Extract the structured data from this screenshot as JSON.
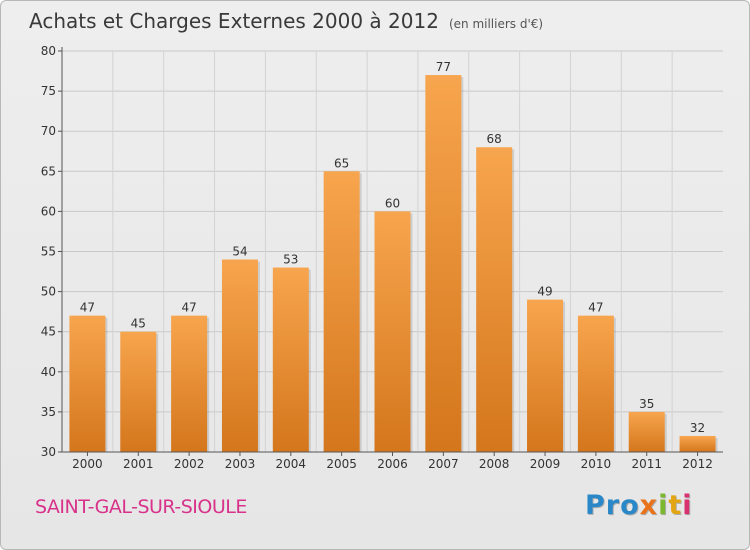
{
  "header": {
    "title": "Achats et Charges Externes 2000 à 2012",
    "subtitle": "(en milliers d'€)"
  },
  "footer": {
    "city": "SAINT-GAL-SUR-SIOULE",
    "logo": [
      "Pro",
      "x",
      "i",
      "t",
      "i"
    ]
  },
  "colors": {
    "bar_light": "#f7a54e",
    "bar_dark": "#d4761c",
    "city": "#d8328a"
  },
  "chart_data": {
    "type": "bar",
    "categories": [
      "2000",
      "2001",
      "2002",
      "2003",
      "2004",
      "2005",
      "2006",
      "2007",
      "2008",
      "2009",
      "2010",
      "2011",
      "2012"
    ],
    "values": [
      47,
      45,
      47,
      54,
      53,
      65,
      60,
      77,
      68,
      49,
      47,
      35,
      32
    ],
    "ylim": [
      30,
      80
    ],
    "yticks": [
      30,
      35,
      40,
      45,
      50,
      55,
      60,
      65,
      70,
      75,
      80
    ],
    "grid": true,
    "data_labels": true
  }
}
